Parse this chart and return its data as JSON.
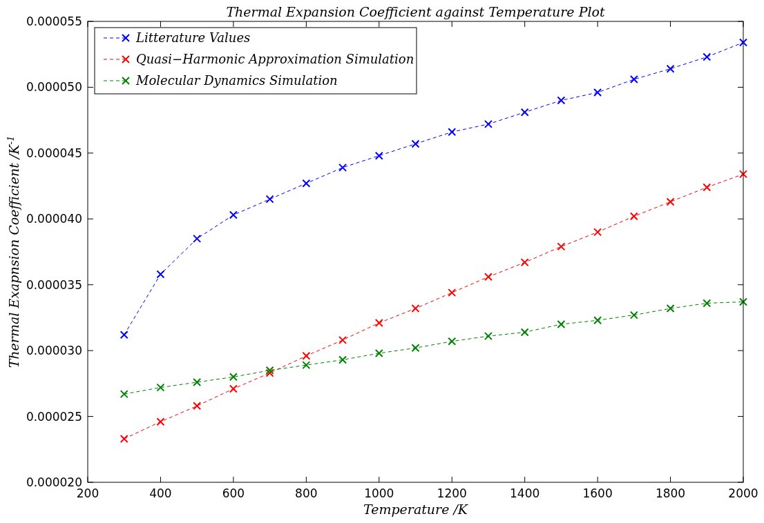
{
  "chart_data": {
    "type": "line",
    "title": "Thermal Expansion Coefficient against Temperature Plot",
    "xlabel": "Temperature /K",
    "ylabel": "Thermal Exapnsion Coefficient /K$^{-1}$",
    "x": [
      300,
      400,
      500,
      600,
      700,
      800,
      900,
      1000,
      1100,
      1200,
      1300,
      1400,
      1500,
      1600,
      1700,
      1800,
      1900,
      2000
    ],
    "series": [
      {
        "name": "Litterature Values",
        "color": "#0000ff",
        "values": [
          3.12e-05,
          3.58e-05,
          3.85e-05,
          4.03e-05,
          4.15e-05,
          4.27e-05,
          4.39e-05,
          4.48e-05,
          4.57e-05,
          4.66e-05,
          4.72e-05,
          4.81e-05,
          4.9e-05,
          4.96e-05,
          5.06e-05,
          5.14e-05,
          5.23e-05,
          5.34e-05
        ]
      },
      {
        "name": "Quasi−Harmonic Approximation Simulation",
        "color": "#ff0000",
        "values": [
          2.33e-05,
          2.46e-05,
          2.58e-05,
          2.71e-05,
          2.83e-05,
          2.96e-05,
          3.08e-05,
          3.21e-05,
          3.32e-05,
          3.44e-05,
          3.56e-05,
          3.67e-05,
          3.79e-05,
          3.9e-05,
          4.02e-05,
          4.13e-05,
          4.24e-05,
          4.34e-05
        ]
      },
      {
        "name": "Molecular Dynamics Simulation",
        "color": "#008000",
        "values": [
          2.67e-05,
          2.72e-05,
          2.76e-05,
          2.8e-05,
          2.85e-05,
          2.89e-05,
          2.93e-05,
          2.98e-05,
          3.02e-05,
          3.07e-05,
          3.11e-05,
          3.14e-05,
          3.2e-05,
          3.23e-05,
          3.27e-05,
          3.32e-05,
          3.36e-05,
          3.37e-05
        ]
      }
    ],
    "xlim": [
      200,
      2000
    ],
    "xticks": [
      200,
      400,
      600,
      800,
      1000,
      1200,
      1400,
      1600,
      1800,
      2000
    ],
    "ylim": [
      2e-05,
      5.5e-05
    ],
    "yticks": [
      {
        "value": 2e-05,
        "label": "0.000020"
      },
      {
        "value": 2.5e-05,
        "label": "0.000025"
      },
      {
        "value": 3e-05,
        "label": "0.000030"
      },
      {
        "value": 3.5e-05,
        "label": "0.000035"
      },
      {
        "value": 4e-05,
        "label": "0.000040"
      },
      {
        "value": 4.5e-05,
        "label": "0.000045"
      },
      {
        "value": 5e-05,
        "label": "0.000050"
      },
      {
        "value": 5.5e-05,
        "label": "0.000055"
      }
    ],
    "grid": false,
    "legend": "top left",
    "marker": "cross",
    "line_style": "dashed"
  }
}
